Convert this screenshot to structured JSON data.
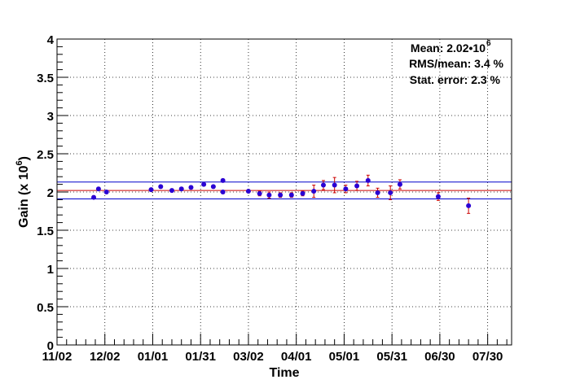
{
  "chart_data": {
    "type": "scatter",
    "xlabel": "Time",
    "ylabel_text": "Gain (x 10",
    "ylabel_exp": "6",
    "ylabel_close": ")",
    "ylim": [
      0,
      4
    ],
    "y_ticks": [
      "0",
      "0.5",
      "1",
      "1.5",
      "2",
      "2.5",
      "3",
      "3.5",
      "4"
    ],
    "y_tick_values": [
      0,
      0.5,
      1,
      1.5,
      2,
      2.5,
      3,
      3.5,
      4
    ],
    "x_tick_labels": [
      "11/02",
      "12/02",
      "01/01",
      "01/31",
      "03/02",
      "04/01",
      "05/01",
      "05/31",
      "06/30",
      "07/30"
    ],
    "x_tick_days": [
      0,
      30,
      60,
      90,
      120,
      150,
      180,
      210,
      240,
      270
    ],
    "xlim_days": [
      0,
      285
    ],
    "grid": true,
    "stats": {
      "mean_label": "Mean: 2.02",
      "mean_sep": "•",
      "mean_base": "10",
      "mean_exp": "6",
      "rms_label": "RMS/mean: 3.4 %",
      "stat_error_label": "Stat. error: 2.3 %"
    },
    "lines": {
      "mean": 2.02,
      "upper": 2.13,
      "lower": 1.91,
      "mean_color": "#cc0000",
      "band_color": "#0000cc"
    },
    "marker_color": "#2a00d4",
    "errorbar_color": "#cc0000",
    "points": [
      {
        "day": 23,
        "gain": 1.93,
        "err": 0.02
      },
      {
        "day": 26,
        "gain": 2.04,
        "err": 0.02
      },
      {
        "day": 31,
        "gain": 2.0,
        "err": 0.02
      },
      {
        "day": 59,
        "gain": 2.03,
        "err": 0.02
      },
      {
        "day": 65,
        "gain": 2.07,
        "err": 0.02
      },
      {
        "day": 72,
        "gain": 2.02,
        "err": 0.02
      },
      {
        "day": 78,
        "gain": 2.04,
        "err": 0.02
      },
      {
        "day": 84,
        "gain": 2.06,
        "err": 0.02
      },
      {
        "day": 92,
        "gain": 2.1,
        "err": 0.02
      },
      {
        "day": 98,
        "gain": 2.07,
        "err": 0.02
      },
      {
        "day": 104,
        "gain": 2.0,
        "err": 0.02
      },
      {
        "day": 104,
        "gain": 2.15,
        "err": 0.02
      },
      {
        "day": 120,
        "gain": 2.01,
        "err": 0.02
      },
      {
        "day": 127,
        "gain": 1.98,
        "err": 0.03
      },
      {
        "day": 133,
        "gain": 1.96,
        "err": 0.04
      },
      {
        "day": 140,
        "gain": 1.96,
        "err": 0.03
      },
      {
        "day": 147,
        "gain": 1.96,
        "err": 0.03
      },
      {
        "day": 154,
        "gain": 1.98,
        "err": 0.03
      },
      {
        "day": 161,
        "gain": 2.01,
        "err": 0.08
      },
      {
        "day": 167,
        "gain": 2.09,
        "err": 0.06
      },
      {
        "day": 174,
        "gain": 2.09,
        "err": 0.1
      },
      {
        "day": 181,
        "gain": 2.04,
        "err": 0.05
      },
      {
        "day": 188,
        "gain": 2.08,
        "err": 0.06
      },
      {
        "day": 195,
        "gain": 2.15,
        "err": 0.07
      },
      {
        "day": 201,
        "gain": 1.99,
        "err": 0.06
      },
      {
        "day": 209,
        "gain": 1.99,
        "err": 0.09
      },
      {
        "day": 215,
        "gain": 2.1,
        "err": 0.06
      },
      {
        "day": 239,
        "gain": 1.94,
        "err": 0.05
      },
      {
        "day": 258,
        "gain": 1.82,
        "err": 0.1
      }
    ]
  }
}
